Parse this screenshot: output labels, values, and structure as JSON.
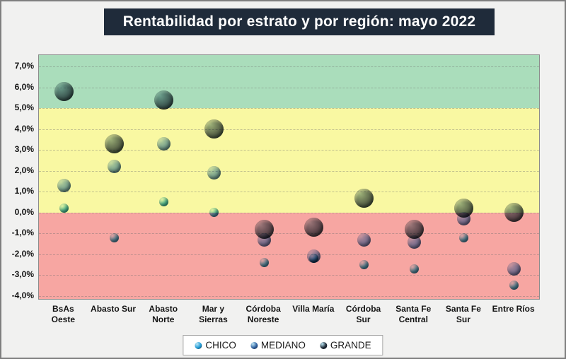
{
  "title": "Rentabilidad por estrato y por región: mayo 2022",
  "chart_data": {
    "type": "scatter",
    "subtype": "bubble-by-stratum",
    "title": "Rentabilidad por estrato y por región: mayo 2022",
    "xlabel": "",
    "ylabel": "",
    "y_unit": "%",
    "grid": "horizontal-dashed",
    "legend_position": "bottom-center",
    "ylim": [
      -4.15,
      7.55
    ],
    "categories": [
      "BsAs Oeste",
      "Abasto Sur",
      "Abasto Norte",
      "Mar y Sierras",
      "Córdoba Noreste",
      "Villa María",
      "Córdoba Sur",
      "Santa Fe Central",
      "Santa Fe Sur",
      "Entre Ríos"
    ],
    "category_label_lines": [
      [
        "BsAs",
        "Oeste"
      ],
      [
        "Abasto Sur"
      ],
      [
        "Abasto",
        "Norte"
      ],
      [
        "Mar y",
        "Sierras"
      ],
      [
        "Córdoba",
        "Noreste"
      ],
      [
        "Villa María"
      ],
      [
        "Córdoba",
        "Sur"
      ],
      [
        "Santa Fe",
        "Central"
      ],
      [
        "Santa Fe",
        "Sur"
      ],
      [
        "Entre Ríos"
      ]
    ],
    "y_ticks": [
      {
        "value": 7,
        "label": "7,0%"
      },
      {
        "value": 6,
        "label": "6,0%"
      },
      {
        "value": 5,
        "label": "5,0%"
      },
      {
        "value": 4,
        "label": "4,0%"
      },
      {
        "value": 3,
        "label": "3,0%"
      },
      {
        "value": 2,
        "label": "2,0%"
      },
      {
        "value": 1,
        "label": "1,0%"
      },
      {
        "value": 0,
        "label": "0,0%"
      },
      {
        "value": -1,
        "label": "-1,0%"
      },
      {
        "value": -2,
        "label": "-2,0%"
      },
      {
        "value": -3,
        "label": "-3,0%"
      },
      {
        "value": -4,
        "label": "-4,0%"
      }
    ],
    "bands": [
      {
        "name": "zona-verde",
        "from": 5,
        "to": 7.55,
        "color": "#aaddbb"
      },
      {
        "name": "zona-amarilla",
        "from": 0,
        "to": 5,
        "color": "#f9f8a2"
      },
      {
        "name": "zona-roja",
        "from": -4.15,
        "to": 0,
        "color": "#f7a6a2"
      }
    ],
    "series": [
      {
        "name": "CHICO",
        "size": "small",
        "legend_color": "#1e9ad6",
        "bubble_light": "#d6f4fa",
        "bubble_base": "#58c4e4",
        "bubble_dark": "#1e7fa8",
        "values": [
          0.2,
          -1.2,
          0.5,
          0.0,
          -2.4,
          -2.2,
          -2.5,
          -2.7,
          -1.2,
          -3.5
        ]
      },
      {
        "name": "MEDIANO",
        "size": "medium",
        "legend_color": "#2d5e9e",
        "bubble_light": "#b6d4f2",
        "bubble_base": "#7fa8dc",
        "bubble_dark": "#42689e",
        "values": [
          1.3,
          2.2,
          3.3,
          1.9,
          -1.3,
          -2.1,
          -1.3,
          -1.4,
          -0.3,
          -2.7
        ]
      },
      {
        "name": "GRANDE",
        "size": "large",
        "legend_color": "#1c2733",
        "bubble_light": "#9fb4bc",
        "bubble_base": "#64707a",
        "bubble_dark": "#222e36",
        "values": [
          5.8,
          3.3,
          5.4,
          4.0,
          -0.8,
          -0.7,
          0.7,
          -0.8,
          0.2,
          0.0
        ]
      }
    ]
  }
}
